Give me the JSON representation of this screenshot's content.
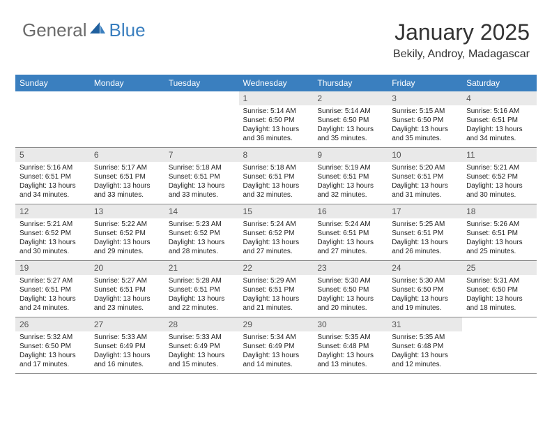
{
  "brand": {
    "general": "General",
    "blue": "Blue"
  },
  "title": "January 2025",
  "location": "Bekily, Androy, Madagascar",
  "colors": {
    "header_bg": "#3a7fbf",
    "daynum_bg": "#e9e9e9",
    "border": "#888888",
    "logo_gray": "#6b6b6b",
    "logo_blue": "#3a7fbf"
  },
  "dow": [
    "Sunday",
    "Monday",
    "Tuesday",
    "Wednesday",
    "Thursday",
    "Friday",
    "Saturday"
  ],
  "weeks": [
    [
      {
        "n": "",
        "sr": "",
        "ss": "",
        "dl": ""
      },
      {
        "n": "",
        "sr": "",
        "ss": "",
        "dl": ""
      },
      {
        "n": "",
        "sr": "",
        "ss": "",
        "dl": ""
      },
      {
        "n": "1",
        "sr": "5:14 AM",
        "ss": "6:50 PM",
        "dl": "13 hours and 36 minutes."
      },
      {
        "n": "2",
        "sr": "5:14 AM",
        "ss": "6:50 PM",
        "dl": "13 hours and 35 minutes."
      },
      {
        "n": "3",
        "sr": "5:15 AM",
        "ss": "6:50 PM",
        "dl": "13 hours and 35 minutes."
      },
      {
        "n": "4",
        "sr": "5:16 AM",
        "ss": "6:51 PM",
        "dl": "13 hours and 34 minutes."
      }
    ],
    [
      {
        "n": "5",
        "sr": "5:16 AM",
        "ss": "6:51 PM",
        "dl": "13 hours and 34 minutes."
      },
      {
        "n": "6",
        "sr": "5:17 AM",
        "ss": "6:51 PM",
        "dl": "13 hours and 33 minutes."
      },
      {
        "n": "7",
        "sr": "5:18 AM",
        "ss": "6:51 PM",
        "dl": "13 hours and 33 minutes."
      },
      {
        "n": "8",
        "sr": "5:18 AM",
        "ss": "6:51 PM",
        "dl": "13 hours and 32 minutes."
      },
      {
        "n": "9",
        "sr": "5:19 AM",
        "ss": "6:51 PM",
        "dl": "13 hours and 32 minutes."
      },
      {
        "n": "10",
        "sr": "5:20 AM",
        "ss": "6:51 PM",
        "dl": "13 hours and 31 minutes."
      },
      {
        "n": "11",
        "sr": "5:21 AM",
        "ss": "6:52 PM",
        "dl": "13 hours and 30 minutes."
      }
    ],
    [
      {
        "n": "12",
        "sr": "5:21 AM",
        "ss": "6:52 PM",
        "dl": "13 hours and 30 minutes."
      },
      {
        "n": "13",
        "sr": "5:22 AM",
        "ss": "6:52 PM",
        "dl": "13 hours and 29 minutes."
      },
      {
        "n": "14",
        "sr": "5:23 AM",
        "ss": "6:52 PM",
        "dl": "13 hours and 28 minutes."
      },
      {
        "n": "15",
        "sr": "5:24 AM",
        "ss": "6:52 PM",
        "dl": "13 hours and 27 minutes."
      },
      {
        "n": "16",
        "sr": "5:24 AM",
        "ss": "6:51 PM",
        "dl": "13 hours and 27 minutes."
      },
      {
        "n": "17",
        "sr": "5:25 AM",
        "ss": "6:51 PM",
        "dl": "13 hours and 26 minutes."
      },
      {
        "n": "18",
        "sr": "5:26 AM",
        "ss": "6:51 PM",
        "dl": "13 hours and 25 minutes."
      }
    ],
    [
      {
        "n": "19",
        "sr": "5:27 AM",
        "ss": "6:51 PM",
        "dl": "13 hours and 24 minutes."
      },
      {
        "n": "20",
        "sr": "5:27 AM",
        "ss": "6:51 PM",
        "dl": "13 hours and 23 minutes."
      },
      {
        "n": "21",
        "sr": "5:28 AM",
        "ss": "6:51 PM",
        "dl": "13 hours and 22 minutes."
      },
      {
        "n": "22",
        "sr": "5:29 AM",
        "ss": "6:51 PM",
        "dl": "13 hours and 21 minutes."
      },
      {
        "n": "23",
        "sr": "5:30 AM",
        "ss": "6:50 PM",
        "dl": "13 hours and 20 minutes."
      },
      {
        "n": "24",
        "sr": "5:30 AM",
        "ss": "6:50 PM",
        "dl": "13 hours and 19 minutes."
      },
      {
        "n": "25",
        "sr": "5:31 AM",
        "ss": "6:50 PM",
        "dl": "13 hours and 18 minutes."
      }
    ],
    [
      {
        "n": "26",
        "sr": "5:32 AM",
        "ss": "6:50 PM",
        "dl": "13 hours and 17 minutes."
      },
      {
        "n": "27",
        "sr": "5:33 AM",
        "ss": "6:49 PM",
        "dl": "13 hours and 16 minutes."
      },
      {
        "n": "28",
        "sr": "5:33 AM",
        "ss": "6:49 PM",
        "dl": "13 hours and 15 minutes."
      },
      {
        "n": "29",
        "sr": "5:34 AM",
        "ss": "6:49 PM",
        "dl": "13 hours and 14 minutes."
      },
      {
        "n": "30",
        "sr": "5:35 AM",
        "ss": "6:48 PM",
        "dl": "13 hours and 13 minutes."
      },
      {
        "n": "31",
        "sr": "5:35 AM",
        "ss": "6:48 PM",
        "dl": "13 hours and 12 minutes."
      },
      {
        "n": "",
        "sr": "",
        "ss": "",
        "dl": ""
      }
    ]
  ],
  "labels": {
    "sunrise": "Sunrise:",
    "sunset": "Sunset:",
    "daylight": "Daylight:"
  }
}
